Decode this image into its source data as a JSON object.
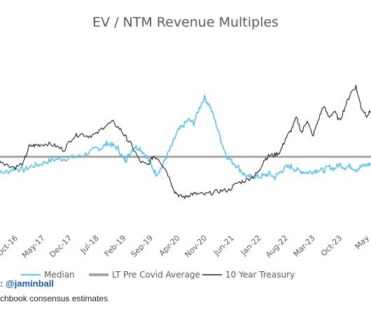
{
  "chart_data": {
    "type": "line",
    "title": "EV / NTM Revenue Multiples",
    "xlabel": "",
    "ylabel": "",
    "x_tick_labels": [
      "Oct-16",
      "May-17",
      "Dec-17",
      "Jul-18",
      "Feb-19",
      "Sep-19",
      "Apr-20",
      "Nov-20",
      "Jun-21",
      "Jan-22",
      "Aug-22",
      "Mar-23",
      "Oct-23",
      "May"
    ],
    "x_ticks_index": [
      0,
      1,
      2,
      3,
      4,
      5,
      6,
      7,
      8,
      9,
      10,
      11,
      12,
      13
    ],
    "ylim": [
      0,
      24
    ],
    "series": [
      {
        "name": "Median",
        "color": "#5bc0eb",
        "x": [
          -0.9,
          -0.6,
          -0.3,
          0.0,
          0.3,
          0.6,
          0.9,
          1.2,
          1.5,
          1.8,
          2.1,
          2.4,
          2.7,
          3.0,
          3.2,
          3.4,
          3.6,
          3.8,
          4.0,
          4.1,
          4.2,
          4.4,
          4.6,
          4.8,
          5.0,
          5.2,
          5.4,
          5.6,
          5.8,
          6.0,
          6.2,
          6.4,
          6.6,
          6.8,
          7.0,
          7.2,
          7.4,
          7.6,
          7.8,
          8.0,
          8.2,
          8.4,
          8.6,
          8.8,
          9.0,
          9.2,
          9.4,
          9.6,
          9.8,
          10.0,
          10.2,
          10.4,
          10.6,
          10.8,
          11.0,
          11.2,
          11.4,
          11.6,
          11.8,
          12.0,
          12.2,
          12.4,
          12.6,
          12.8,
          13.0,
          13.2,
          13.4
        ],
        "values": [
          9.1,
          8.7,
          8.9,
          9.5,
          9.2,
          9.8,
          10.1,
          10.6,
          10.9,
          11.0,
          11.2,
          11.4,
          11.9,
          12.6,
          12.7,
          13.5,
          13.1,
          12.6,
          11.0,
          10.8,
          11.7,
          12.9,
          12.7,
          11.6,
          10.2,
          8.6,
          9.5,
          11.4,
          13.2,
          15.3,
          16.2,
          17.2,
          16.6,
          19.0,
          20.7,
          19.4,
          16.9,
          14.1,
          11.6,
          10.6,
          9.9,
          8.8,
          8.0,
          8.2,
          8.1,
          8.3,
          8.6,
          8.0,
          8.9,
          9.6,
          9.8,
          9.2,
          9.0,
          8.8,
          9.0,
          9.2,
          9.1,
          9.7,
          9.4,
          10.1,
          9.6,
          9.8,
          9.3,
          9.7,
          10.0,
          10.2,
          10.2
        ]
      },
      {
        "name": "LT Pre Covid Average",
        "color": "#a6a6a6",
        "x": [
          -0.9,
          13.4
        ],
        "values": [
          11.3,
          11.3
        ]
      },
      {
        "name": "10 Year Treasury",
        "color": "#1f1f1f",
        "x": [
          -0.9,
          -0.6,
          -0.3,
          0.0,
          0.3,
          0.5,
          0.7,
          0.9,
          1.2,
          1.5,
          1.8,
          2.1,
          2.4,
          2.7,
          3.0,
          3.3,
          3.6,
          3.9,
          4.1,
          4.3,
          4.6,
          4.9,
          5.1,
          5.3,
          5.6,
          5.9,
          6.1,
          6.3,
          6.5,
          6.7,
          7.0,
          7.3,
          7.6,
          7.9,
          8.2,
          8.5,
          8.8,
          9.0,
          9.2,
          9.4,
          9.6,
          9.8,
          10.0,
          10.2,
          10.4,
          10.6,
          10.8,
          11.0,
          11.2,
          11.4,
          11.6,
          11.8,
          12.0,
          12.2,
          12.4,
          12.6,
          12.8,
          13.0,
          13.2,
          13.4
        ],
        "values": [
          11.2,
          10.8,
          10.0,
          9.6,
          10.3,
          12.9,
          13.1,
          13.2,
          13.4,
          13.0,
          12.4,
          14.3,
          15.0,
          14.6,
          14.9,
          16.2,
          16.8,
          15.6,
          14.3,
          13.2,
          10.6,
          9.9,
          11.4,
          11.0,
          9.0,
          5.8,
          5.0,
          4.9,
          5.4,
          5.4,
          5.3,
          5.6,
          5.9,
          6.0,
          7.1,
          7.5,
          8.2,
          8.9,
          10.8,
          11.5,
          11.6,
          12.1,
          14.2,
          15.5,
          17.5,
          15.1,
          17.2,
          14.5,
          17.0,
          19.4,
          17.6,
          18.5,
          17.0,
          19.2,
          21.4,
          22.5,
          19.1,
          17.9,
          18.7,
          19.3
        ]
      }
    ],
    "legend": {
      "placement": "bottom",
      "entries": [
        "Median",
        "LT Pre Covid Average",
        "10 Year Treasury"
      ]
    },
    "grid": false
  },
  "footer": {
    "credit": "@jaminball",
    "source": "chbook consensus estimates"
  }
}
